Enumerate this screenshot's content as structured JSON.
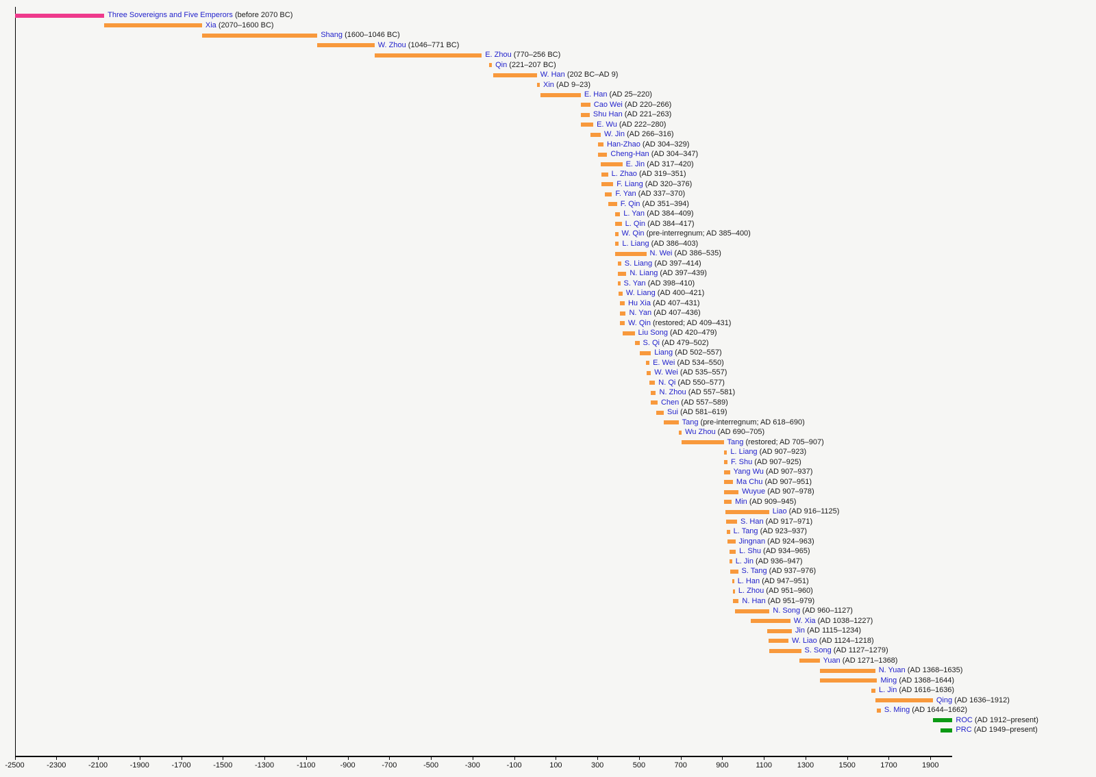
{
  "chart_data": {
    "type": "bar",
    "subtype": "timeline-gantt",
    "title": "",
    "xlabel": "",
    "ylabel": "",
    "grid": false,
    "legend": false,
    "axis": {
      "xmin": -2500,
      "xmax": 2006,
      "ticks": [
        -2500,
        -2300,
        -2100,
        -1900,
        -1700,
        -1500,
        -1300,
        -1100,
        -900,
        -700,
        -500,
        -300,
        -100,
        100,
        300,
        500,
        700,
        900,
        1100,
        1300,
        1500,
        1700,
        1900
      ],
      "tick_labels": [
        "-2500",
        "-2300",
        "-2100",
        "-1900",
        "-1700",
        "-1500",
        "-1300",
        "-1100",
        "-900",
        "-700",
        "-500",
        "-300",
        "-100",
        "100",
        "300",
        "500",
        "700",
        "900",
        "1100",
        "1300",
        "1500",
        "1700",
        "1900"
      ]
    },
    "colors": {
      "legendary": "#ee3a8c",
      "imperial": "#f8993c",
      "modern": "#0c9a14",
      "name_text": "#2222cc",
      "date_text": "#1a1a1a",
      "axis": "#000000",
      "background": "#f6f6f4"
    },
    "rows": [
      {
        "name": "Three Sovereigns and Five Emperors",
        "dates": "(before 2070 BC)",
        "start": -2500,
        "end": -2070,
        "color": "legendary"
      },
      {
        "name": "Xia",
        "dates": "(2070–1600 BC)",
        "start": -2070,
        "end": -1600,
        "color": "imperial"
      },
      {
        "name": "Shang",
        "dates": "(1600–1046 BC)",
        "start": -1600,
        "end": -1046,
        "color": "imperial"
      },
      {
        "name": "W. Zhou",
        "dates": "(1046–771 BC)",
        "start": -1046,
        "end": -771,
        "color": "imperial"
      },
      {
        "name": "E. Zhou",
        "dates": "(770–256 BC)",
        "start": -770,
        "end": -256,
        "color": "imperial"
      },
      {
        "name": "Qin",
        "dates": "(221–207 BC)",
        "start": -221,
        "end": -207,
        "color": "imperial"
      },
      {
        "name": "W. Han",
        "dates": "(202 BC–AD 9)",
        "start": -202,
        "end": 9,
        "color": "imperial"
      },
      {
        "name": "Xin",
        "dates": "(AD 9–23)",
        "start": 9,
        "end": 23,
        "color": "imperial"
      },
      {
        "name": "E. Han",
        "dates": "(AD 25–220)",
        "start": 25,
        "end": 220,
        "color": "imperial"
      },
      {
        "name": "Cao Wei",
        "dates": "(AD 220–266)",
        "start": 220,
        "end": 266,
        "color": "imperial"
      },
      {
        "name": "Shu Han",
        "dates": "(AD 221–263)",
        "start": 221,
        "end": 263,
        "color": "imperial"
      },
      {
        "name": "E. Wu",
        "dates": "(AD 222–280)",
        "start": 222,
        "end": 280,
        "color": "imperial"
      },
      {
        "name": "W. Jin",
        "dates": "(AD 266–316)",
        "start": 266,
        "end": 316,
        "color": "imperial"
      },
      {
        "name": "Han-Zhao",
        "dates": "(AD 304–329)",
        "start": 304,
        "end": 329,
        "color": "imperial"
      },
      {
        "name": "Cheng-Han",
        "dates": "(AD 304–347)",
        "start": 304,
        "end": 347,
        "color": "imperial"
      },
      {
        "name": "E. Jin",
        "dates": "(AD 317–420)",
        "start": 317,
        "end": 420,
        "color": "imperial"
      },
      {
        "name": "L. Zhao",
        "dates": "(AD 319–351)",
        "start": 319,
        "end": 351,
        "color": "imperial"
      },
      {
        "name": "F. Liang",
        "dates": "(AD 320–376)",
        "start": 320,
        "end": 376,
        "color": "imperial"
      },
      {
        "name": "F. Yan",
        "dates": "(AD 337–370)",
        "start": 337,
        "end": 370,
        "color": "imperial"
      },
      {
        "name": "F. Qin",
        "dates": "(AD 351–394)",
        "start": 351,
        "end": 394,
        "color": "imperial"
      },
      {
        "name": "L. Yan",
        "dates": "(AD 384–409)",
        "start": 384,
        "end": 409,
        "color": "imperial"
      },
      {
        "name": "L. Qin",
        "dates": "(AD 384–417)",
        "start": 384,
        "end": 417,
        "color": "imperial"
      },
      {
        "name": "W. Qin",
        "dates": "(pre-interregnum; AD 385–400)",
        "start": 385,
        "end": 400,
        "color": "imperial"
      },
      {
        "name": "L. Liang",
        "dates": "(AD 386–403)",
        "start": 386,
        "end": 403,
        "color": "imperial"
      },
      {
        "name": "N. Wei",
        "dates": "(AD 386–535)",
        "start": 386,
        "end": 535,
        "color": "imperial"
      },
      {
        "name": "S. Liang",
        "dates": "(AD 397–414)",
        "start": 397,
        "end": 414,
        "color": "imperial"
      },
      {
        "name": "N. Liang",
        "dates": "(AD 397–439)",
        "start": 397,
        "end": 439,
        "color": "imperial"
      },
      {
        "name": "S. Yan",
        "dates": "(AD 398–410)",
        "start": 398,
        "end": 410,
        "color": "imperial"
      },
      {
        "name": "W. Liang",
        "dates": "(AD 400–421)",
        "start": 400,
        "end": 421,
        "color": "imperial"
      },
      {
        "name": "Hu Xia",
        "dates": "(AD 407–431)",
        "start": 407,
        "end": 431,
        "color": "imperial"
      },
      {
        "name": "N. Yan",
        "dates": "(AD 407–436)",
        "start": 407,
        "end": 436,
        "color": "imperial"
      },
      {
        "name": "W. Qin",
        "dates": "(restored; AD 409–431)",
        "start": 409,
        "end": 431,
        "color": "imperial"
      },
      {
        "name": "Liu Song",
        "dates": "(AD 420–479)",
        "start": 420,
        "end": 479,
        "color": "imperial"
      },
      {
        "name": "S. Qi",
        "dates": "(AD 479–502)",
        "start": 479,
        "end": 502,
        "color": "imperial"
      },
      {
        "name": "Liang",
        "dates": "(AD 502–557)",
        "start": 502,
        "end": 557,
        "color": "imperial"
      },
      {
        "name": "E. Wei",
        "dates": "(AD 534–550)",
        "start": 534,
        "end": 550,
        "color": "imperial"
      },
      {
        "name": "W. Wei",
        "dates": "(AD 535–557)",
        "start": 535,
        "end": 557,
        "color": "imperial"
      },
      {
        "name": "N. Qi",
        "dates": "(AD 550–577)",
        "start": 550,
        "end": 577,
        "color": "imperial"
      },
      {
        "name": "N. Zhou",
        "dates": "(AD 557–581)",
        "start": 557,
        "end": 581,
        "color": "imperial"
      },
      {
        "name": "Chen",
        "dates": "(AD 557–589)",
        "start": 557,
        "end": 589,
        "color": "imperial"
      },
      {
        "name": "Sui",
        "dates": "(AD 581–619)",
        "start": 581,
        "end": 619,
        "color": "imperial"
      },
      {
        "name": "Tang",
        "dates": "(pre-interregnum; AD 618–690)",
        "start": 618,
        "end": 690,
        "color": "imperial"
      },
      {
        "name": "Wu Zhou",
        "dates": "(AD 690–705)",
        "start": 690,
        "end": 705,
        "color": "imperial"
      },
      {
        "name": "Tang",
        "dates": "(restored; AD 705–907)",
        "start": 705,
        "end": 907,
        "color": "imperial"
      },
      {
        "name": "L. Liang",
        "dates": "(AD 907–923)",
        "start": 907,
        "end": 923,
        "color": "imperial"
      },
      {
        "name": "F. Shu",
        "dates": "(AD 907–925)",
        "start": 907,
        "end": 925,
        "color": "imperial"
      },
      {
        "name": "Yang Wu",
        "dates": "(AD 907–937)",
        "start": 907,
        "end": 937,
        "color": "imperial"
      },
      {
        "name": "Ma Chu",
        "dates": "(AD 907–951)",
        "start": 907,
        "end": 951,
        "color": "imperial"
      },
      {
        "name": "Wuyue",
        "dates": "(AD 907–978)",
        "start": 907,
        "end": 978,
        "color": "imperial"
      },
      {
        "name": "Min",
        "dates": "(AD 909–945)",
        "start": 909,
        "end": 945,
        "color": "imperial"
      },
      {
        "name": "Liao",
        "dates": "(AD 916–1125)",
        "start": 916,
        "end": 1125,
        "color": "imperial"
      },
      {
        "name": "S. Han",
        "dates": "(AD 917–971)",
        "start": 917,
        "end": 971,
        "color": "imperial"
      },
      {
        "name": "L. Tang",
        "dates": "(AD 923–937)",
        "start": 923,
        "end": 937,
        "color": "imperial"
      },
      {
        "name": "Jingnan",
        "dates": "(AD 924–963)",
        "start": 924,
        "end": 963,
        "color": "imperial"
      },
      {
        "name": "L. Shu",
        "dates": "(AD 934–965)",
        "start": 934,
        "end": 965,
        "color": "imperial"
      },
      {
        "name": "L. Jin",
        "dates": "(AD 936–947)",
        "start": 936,
        "end": 947,
        "color": "imperial"
      },
      {
        "name": "S. Tang",
        "dates": "(AD 937–976)",
        "start": 937,
        "end": 976,
        "color": "imperial"
      },
      {
        "name": "L. Han",
        "dates": "(AD 947–951)",
        "start": 947,
        "end": 951,
        "color": "imperial"
      },
      {
        "name": "L. Zhou",
        "dates": "(AD 951–960)",
        "start": 951,
        "end": 960,
        "color": "imperial"
      },
      {
        "name": "N. Han",
        "dates": "(AD 951–979)",
        "start": 951,
        "end": 979,
        "color": "imperial"
      },
      {
        "name": "N. Song",
        "dates": "(AD 960–1127)",
        "start": 960,
        "end": 1127,
        "color": "imperial"
      },
      {
        "name": "W. Xia",
        "dates": "(AD 1038–1227)",
        "start": 1038,
        "end": 1227,
        "color": "imperial"
      },
      {
        "name": "Jin",
        "dates": "(AD 1115–1234)",
        "start": 1115,
        "end": 1234,
        "color": "imperial"
      },
      {
        "name": "W. Liao",
        "dates": "(AD 1124–1218)",
        "start": 1124,
        "end": 1218,
        "color": "imperial"
      },
      {
        "name": "S. Song",
        "dates": "(AD 1127–1279)",
        "start": 1127,
        "end": 1279,
        "color": "imperial"
      },
      {
        "name": "Yuan",
        "dates": "(AD 1271–1368)",
        "start": 1271,
        "end": 1368,
        "color": "imperial"
      },
      {
        "name": "N. Yuan",
        "dates": "(AD 1368–1635)",
        "start": 1368,
        "end": 1635,
        "color": "imperial"
      },
      {
        "name": "Ming",
        "dates": "(AD 1368–1644)",
        "start": 1368,
        "end": 1644,
        "color": "imperial"
      },
      {
        "name": "L. Jin",
        "dates": "(AD 1616–1636)",
        "start": 1616,
        "end": 1636,
        "color": "imperial"
      },
      {
        "name": "Qing",
        "dates": "(AD 1636–1912)",
        "start": 1636,
        "end": 1912,
        "color": "imperial"
      },
      {
        "name": "S. Ming",
        "dates": "(AD 1644–1662)",
        "start": 1644,
        "end": 1662,
        "color": "imperial"
      },
      {
        "name": "ROC",
        "dates": "(AD 1912–present)",
        "start": 1912,
        "end": "present",
        "color": "modern"
      },
      {
        "name": "PRC",
        "dates": "(AD 1949–present)",
        "start": 1949,
        "end": "present",
        "color": "modern"
      }
    ]
  }
}
